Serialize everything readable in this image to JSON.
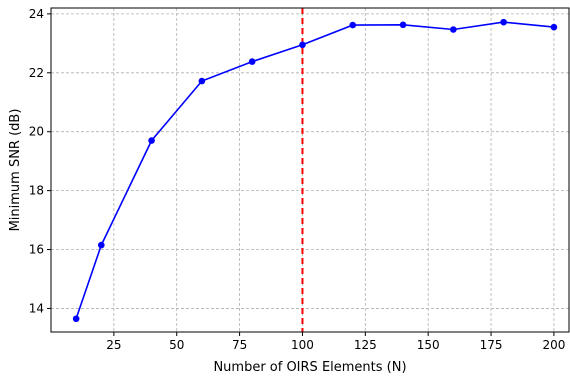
{
  "chart_data": {
    "type": "line",
    "title": "",
    "xlabel": "Number of OIRS Elements (N)",
    "ylabel": "Minimum SNR (dB)",
    "xlim": [
      0,
      206
    ],
    "ylim": [
      13.2,
      24.2
    ],
    "xticks": [
      25,
      50,
      75,
      100,
      125,
      150,
      175,
      200
    ],
    "yticks": [
      14,
      16,
      18,
      20,
      22,
      24
    ],
    "grid": true,
    "series": [
      {
        "color": "#0000ff",
        "marker": "circle",
        "x": [
          10,
          20,
          40,
          60,
          80,
          100,
          120,
          140,
          160,
          180,
          200
        ],
        "y": [
          13.65,
          16.15,
          19.7,
          21.72,
          22.38,
          22.95,
          23.62,
          23.63,
          23.47,
          23.72,
          23.55
        ]
      }
    ],
    "vline": {
      "x": 100,
      "color": "#ff0000",
      "style": "dashed"
    }
  }
}
